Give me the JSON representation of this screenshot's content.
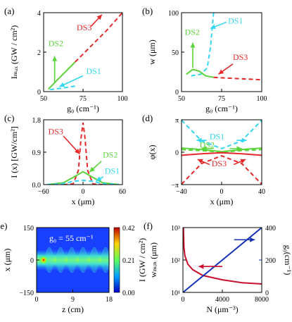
{
  "colors": {
    "red": "#e5282a",
    "green": "#5cd43b",
    "cyan": "#33d6ef",
    "crimson": "#c8102e",
    "blue": "#1530b8",
    "black": "#000000"
  },
  "chart_data": [
    {
      "panel": "(a)",
      "type": "line",
      "xlabel": "g0 (cm^-1)",
      "ylabel": "I_max (GW/cm^2)",
      "xlim": [
        50,
        100
      ],
      "ylim": [
        0,
        4
      ],
      "xticks": [
        "50",
        "75",
        "100"
      ],
      "yticks": [
        "0",
        "2",
        "4"
      ],
      "series": [
        {
          "name": "DS3",
          "color": "#e5282a",
          "dash": "dashed",
          "x": [
            70,
            80,
            90,
            100
          ],
          "y": [
            1.5,
            2.3,
            3.1,
            4.0
          ]
        },
        {
          "name": "DS2",
          "color": "#5cd43b",
          "dash": "solid",
          "x": [
            53,
            60,
            70
          ],
          "y": [
            0.12,
            0.7,
            1.5
          ]
        },
        {
          "name": "DS1",
          "color": "#33d6ef",
          "dash": "dashed",
          "x": [
            54,
            62,
            70
          ],
          "y": [
            0.1,
            0.18,
            0.28
          ]
        }
      ],
      "annotations": [
        "DS3",
        "DS2",
        "DS1"
      ]
    },
    {
      "panel": "(b)",
      "type": "line",
      "xlabel": "g0 (cm^-1)",
      "ylabel": "w (μm)",
      "xlim": [
        50,
        100
      ],
      "ylim": [
        0,
        100
      ],
      "xticks": [
        "50",
        "75",
        "100"
      ],
      "yticks": [
        "0",
        "50",
        "100"
      ],
      "series": [
        {
          "name": "DS1",
          "color": "#33d6ef",
          "dash": "dashed",
          "x": [
            56,
            62,
            66,
            68,
            70
          ],
          "y": [
            20,
            22,
            30,
            55,
            100
          ]
        },
        {
          "name": "DS2",
          "color": "#5cd43b",
          "dash": "solid",
          "x": [
            53,
            57,
            61,
            65,
            70
          ],
          "y": [
            22,
            28,
            26,
            20,
            18
          ]
        },
        {
          "name": "DS3",
          "color": "#e5282a",
          "dash": "dashed",
          "x": [
            70,
            80,
            90,
            100
          ],
          "y": [
            18,
            17,
            16,
            15
          ]
        }
      ],
      "annotations": [
        "DS2",
        "DS1",
        "DS3"
      ]
    },
    {
      "panel": "(c)",
      "type": "line",
      "xlabel": "x (μm)",
      "ylabel": "I(x) [GW/cm^2]",
      "xlim": [
        -60,
        60
      ],
      "ylim": [
        0,
        1.8
      ],
      "xticks": [
        "-60",
        "0",
        "60"
      ],
      "yticks": [
        "0.0",
        "0.9",
        "1.8"
      ],
      "series": [
        {
          "name": "DS3",
          "color": "#e5282a",
          "dash": "dashed",
          "x": [
            -30,
            -15,
            -7,
            -3,
            0,
            3,
            7,
            15,
            30
          ],
          "y": [
            0,
            0.02,
            0.4,
            1.3,
            1.72,
            1.3,
            0.4,
            0.02,
            0
          ]
        },
        {
          "name": "DS2",
          "color": "#5cd43b",
          "dash": "solid",
          "x": [
            -55,
            -30,
            -15,
            0,
            15,
            30,
            55
          ],
          "y": [
            0,
            0.05,
            0.2,
            0.36,
            0.2,
            0.05,
            0
          ]
        },
        {
          "name": "DS1",
          "color": "#33d6ef",
          "dash": "dashed",
          "x": [
            -55,
            -30,
            -15,
            0,
            15,
            30,
            55
          ],
          "y": [
            0,
            0.03,
            0.09,
            0.12,
            0.09,
            0.03,
            0
          ]
        }
      ],
      "annotations": [
        "DS3",
        "DS2",
        "DS1"
      ]
    },
    {
      "panel": "(d)",
      "type": "line",
      "xlabel": "x (μm)",
      "ylabel": "φ(x)",
      "xlim": [
        -40,
        40
      ],
      "ylim": [
        -3.1416,
        3.1416
      ],
      "xticks": [
        "-40",
        "0",
        "40"
      ],
      "yticks": [
        "-π",
        "0",
        "π"
      ],
      "series": [
        {
          "name": "DS1",
          "color": "#33d6ef",
          "dash": "dashed",
          "x": [
            -40,
            -20,
            0,
            20,
            40
          ],
          "y": [
            3.1,
            1.1,
            0.35,
            1.1,
            3.1
          ]
        },
        {
          "name": "DS2",
          "color": "#5cd43b",
          "dash": "solid",
          "x": [
            -40,
            -20,
            0,
            20,
            40
          ],
          "y": [
            0.4,
            0.25,
            0.05,
            0.25,
            0.4
          ]
        },
        {
          "name": "DS2b",
          "color": "#5cd43b",
          "dash": "dashed",
          "x": [
            -40,
            -20,
            0,
            20,
            40
          ],
          "y": [
            0.25,
            0.15,
            0.0,
            0.15,
            0.25
          ]
        },
        {
          "name": "DS3",
          "color": "#e5282a",
          "dash": "dashed",
          "x": [
            -40,
            -20,
            0,
            20,
            40
          ],
          "y": [
            -3.1,
            -1.1,
            -0.35,
            -1.1,
            -3.1
          ]
        },
        {
          "name": "DS3b",
          "color": "#e5282a",
          "dash": "solid",
          "x": [
            -40,
            -20,
            0,
            20,
            40
          ],
          "y": [
            -0.3,
            -0.15,
            -0.05,
            -0.15,
            -0.3
          ]
        }
      ],
      "annotations": [
        "DS1",
        "DS2",
        "DS3"
      ]
    },
    {
      "panel": "(e)",
      "type": "heatmap",
      "xlabel": "z (cm)",
      "ylabel": "x (μm)",
      "xlim": [
        0,
        18
      ],
      "ylim": [
        -150,
        150
      ],
      "xticks": [
        "0",
        "9",
        "18"
      ],
      "yticks": [
        "-150",
        "0",
        "150"
      ],
      "colorbar": {
        "label": "I (GW/cm^2)",
        "ticks": [
          "0.42",
          "0.21",
          "0.00"
        ]
      },
      "annotation": "g0 = 55 cm^-1"
    },
    {
      "panel": "(f)",
      "type": "line",
      "xlabel": "N (μm^-3)",
      "ylabel": "w_min (μm)",
      "ylabel_right": "g0 (cm^-1)",
      "xlim": [
        0,
        8000
      ],
      "ylim_left_log": [
        5,
        1000
      ],
      "ylim_right": [
        0,
        400
      ],
      "xticks": [
        "0",
        "4000",
        "8000"
      ],
      "yticks_left": [
        "10^1",
        "10^2",
        "10^3"
      ],
      "yticks_right": [
        "0",
        "200",
        "400"
      ],
      "series": [
        {
          "name": "w_min",
          "color": "#c8102e",
          "axis": "left",
          "x": [
            50,
            100,
            200,
            500,
            1000,
            2000,
            4000,
            6000,
            8000
          ],
          "y": [
            1000,
            200,
            100,
            50,
            32,
            20,
            14,
            11,
            10
          ]
        },
        {
          "name": "g0",
          "color": "#1530b8",
          "axis": "right",
          "x": [
            0,
            2000,
            4000,
            6000,
            8000
          ],
          "y": [
            0,
            100,
            200,
            300,
            400
          ]
        }
      ]
    }
  ]
}
